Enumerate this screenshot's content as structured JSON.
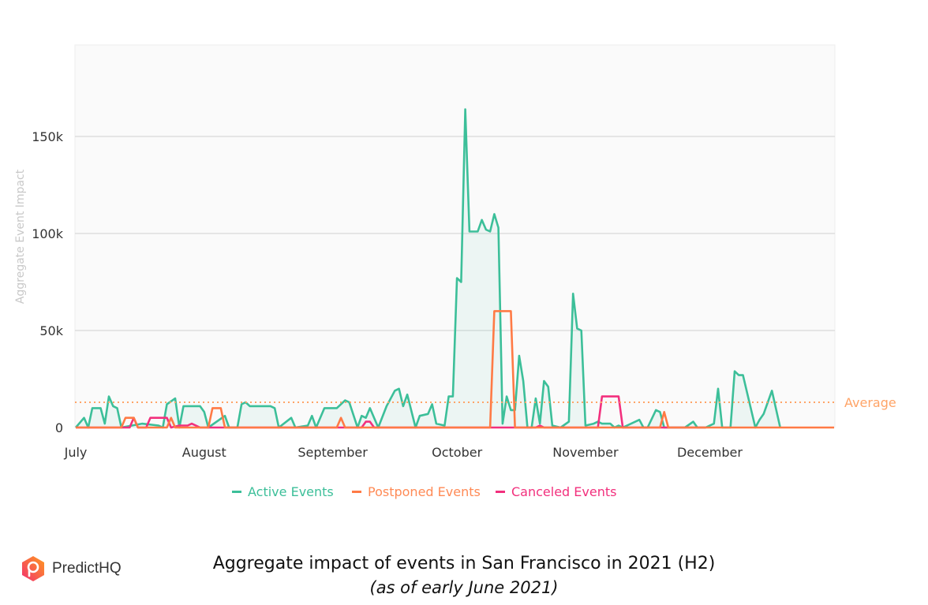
{
  "chart_data": {
    "type": "area",
    "title": "Aggregate impact of events in San Francisco in 2021 (H2)",
    "subtitle": "(as of early June 2021)",
    "ylabel": "Aggregate Event Impact",
    "xlabel": "",
    "xlim": [
      "2021-07-01",
      "2021-12-31"
    ],
    "ylim": [
      0,
      195000
    ],
    "grid": true,
    "legend_placement": "bottom",
    "x_ticks": [
      {
        "date": "2021-07-01",
        "label": "July"
      },
      {
        "date": "2021-08-01",
        "label": "August"
      },
      {
        "date": "2021-09-01",
        "label": "September"
      },
      {
        "date": "2021-10-01",
        "label": "October"
      },
      {
        "date": "2021-11-01",
        "label": "November"
      },
      {
        "date": "2021-12-01",
        "label": "December"
      }
    ],
    "y_ticks": [
      {
        "value": 0,
        "label": "0"
      },
      {
        "value": 50000,
        "label": "50k"
      },
      {
        "value": 100000,
        "label": "100k"
      },
      {
        "value": 150000,
        "label": "150k"
      }
    ],
    "average": {
      "label": "Average",
      "value": 13000,
      "color": "#ffa467"
    },
    "series": [
      {
        "name": "Active Events",
        "color": "#3cbf99",
        "fill": true,
        "points": [
          [
            "2021-07-01",
            0
          ],
          [
            "2021-07-03",
            5000
          ],
          [
            "2021-07-04",
            0
          ],
          [
            "2021-07-05",
            10000
          ],
          [
            "2021-07-07",
            10000
          ],
          [
            "2021-07-08",
            2000
          ],
          [
            "2021-07-09",
            16000
          ],
          [
            "2021-07-10",
            11000
          ],
          [
            "2021-07-11",
            10000
          ],
          [
            "2021-07-12",
            0
          ],
          [
            "2021-07-17",
            2000
          ],
          [
            "2021-07-21",
            1000
          ],
          [
            "2021-07-22",
            0
          ],
          [
            "2021-07-23",
            12000
          ],
          [
            "2021-07-25",
            15000
          ],
          [
            "2021-07-26",
            0
          ],
          [
            "2021-07-27",
            11000
          ],
          [
            "2021-07-29",
            11000
          ],
          [
            "2021-07-31",
            11000
          ],
          [
            "2021-08-01",
            8000
          ],
          [
            "2021-08-02",
            0
          ],
          [
            "2021-08-06",
            6000
          ],
          [
            "2021-08-07",
            0
          ],
          [
            "2021-08-09",
            0
          ],
          [
            "2021-08-10",
            12000
          ],
          [
            "2021-08-11",
            13000
          ],
          [
            "2021-08-12",
            11000
          ],
          [
            "2021-08-17",
            11000
          ],
          [
            "2021-08-18",
            10000
          ],
          [
            "2021-08-19",
            0
          ],
          [
            "2021-08-22",
            5000
          ],
          [
            "2021-08-23",
            0
          ],
          [
            "2021-08-26",
            1000
          ],
          [
            "2021-08-27",
            6000
          ],
          [
            "2021-08-28",
            0
          ],
          [
            "2021-08-30",
            10000
          ],
          [
            "2021-09-02",
            10000
          ],
          [
            "2021-09-04",
            14000
          ],
          [
            "2021-09-05",
            13000
          ],
          [
            "2021-09-07",
            0
          ],
          [
            "2021-09-08",
            6000
          ],
          [
            "2021-09-09",
            5000
          ],
          [
            "2021-09-10",
            10000
          ],
          [
            "2021-09-12",
            0
          ],
          [
            "2021-09-14",
            11000
          ],
          [
            "2021-09-16",
            19000
          ],
          [
            "2021-09-17",
            20000
          ],
          [
            "2021-09-18",
            11000
          ],
          [
            "2021-09-19",
            17000
          ],
          [
            "2021-09-21",
            0
          ],
          [
            "2021-09-22",
            6000
          ],
          [
            "2021-09-24",
            7000
          ],
          [
            "2021-09-25",
            12000
          ],
          [
            "2021-09-26",
            2000
          ],
          [
            "2021-09-28",
            1000
          ],
          [
            "2021-09-29",
            16000
          ],
          [
            "2021-09-30",
            16000
          ],
          [
            "2021-10-01",
            77000
          ],
          [
            "2021-10-02",
            75000
          ],
          [
            "2021-10-03",
            164000
          ],
          [
            "2021-10-04",
            101000
          ],
          [
            "2021-10-06",
            101000
          ],
          [
            "2021-10-07",
            107000
          ],
          [
            "2021-10-08",
            102000
          ],
          [
            "2021-10-09",
            101000
          ],
          [
            "2021-10-10",
            110000
          ],
          [
            "2021-10-11",
            103000
          ],
          [
            "2021-10-12",
            2000
          ],
          [
            "2021-10-13",
            16000
          ],
          [
            "2021-10-14",
            9000
          ],
          [
            "2021-10-15",
            9000
          ],
          [
            "2021-10-16",
            37000
          ],
          [
            "2021-10-17",
            24000
          ],
          [
            "2021-10-18",
            0
          ],
          [
            "2021-10-19",
            0
          ],
          [
            "2021-10-20",
            15000
          ],
          [
            "2021-10-21",
            2000
          ],
          [
            "2021-10-22",
            24000
          ],
          [
            "2021-10-23",
            21000
          ],
          [
            "2021-10-24",
            1000
          ],
          [
            "2021-10-26",
            0
          ],
          [
            "2021-10-28",
            3000
          ],
          [
            "2021-10-29",
            69000
          ],
          [
            "2021-10-30",
            51000
          ],
          [
            "2021-10-31",
            50000
          ],
          [
            "2021-11-01",
            1000
          ],
          [
            "2021-11-03",
            2000
          ],
          [
            "2021-11-04",
            3000
          ],
          [
            "2021-11-05",
            2000
          ],
          [
            "2021-11-07",
            2000
          ],
          [
            "2021-11-08",
            0
          ],
          [
            "2021-11-09",
            1000
          ],
          [
            "2021-11-10",
            0
          ],
          [
            "2021-11-14",
            4000
          ],
          [
            "2021-11-15",
            0
          ],
          [
            "2021-11-16",
            0
          ],
          [
            "2021-11-18",
            9000
          ],
          [
            "2021-11-19",
            8000
          ],
          [
            "2021-11-20",
            0
          ],
          [
            "2021-11-25",
            0
          ],
          [
            "2021-11-27",
            3000
          ],
          [
            "2021-11-28",
            0
          ],
          [
            "2021-11-30",
            0
          ],
          [
            "2021-12-02",
            2000
          ],
          [
            "2021-12-03",
            20000
          ],
          [
            "2021-12-04",
            0
          ],
          [
            "2021-12-06",
            0
          ],
          [
            "2021-12-07",
            29000
          ],
          [
            "2021-12-08",
            27000
          ],
          [
            "2021-12-09",
            27000
          ],
          [
            "2021-12-12",
            0
          ],
          [
            "2021-12-13",
            4000
          ],
          [
            "2021-12-14",
            7000
          ],
          [
            "2021-12-16",
            19000
          ],
          [
            "2021-12-18",
            0
          ]
        ]
      },
      {
        "name": "Canceled Events",
        "color": "#f2307d",
        "fill": false,
        "points": [
          [
            "2021-07-01",
            0
          ],
          [
            "2021-07-14",
            0
          ],
          [
            "2021-07-15",
            5000
          ],
          [
            "2021-07-16",
            0
          ],
          [
            "2021-07-18",
            0
          ],
          [
            "2021-07-19",
            5000
          ],
          [
            "2021-07-23",
            5000
          ],
          [
            "2021-07-24",
            0
          ],
          [
            "2021-07-26",
            1000
          ],
          [
            "2021-07-28",
            1000
          ],
          [
            "2021-07-29",
            2000
          ],
          [
            "2021-07-31",
            0
          ],
          [
            "2021-09-08",
            0
          ],
          [
            "2021-09-09",
            3000
          ],
          [
            "2021-09-10",
            3000
          ],
          [
            "2021-09-11",
            0
          ],
          [
            "2021-10-20",
            0
          ],
          [
            "2021-10-21",
            1000
          ],
          [
            "2021-10-22",
            0
          ],
          [
            "2021-11-04",
            0
          ],
          [
            "2021-11-05",
            16000
          ],
          [
            "2021-11-09",
            16000
          ],
          [
            "2021-11-10",
            0
          ],
          [
            "2021-11-30",
            0
          ]
        ]
      },
      {
        "name": "Postponed Events",
        "color": "#ff7a45",
        "fill": false,
        "points": [
          [
            "2021-07-01",
            0
          ],
          [
            "2021-07-12",
            0
          ],
          [
            "2021-07-13",
            5000
          ],
          [
            "2021-07-15",
            5000
          ],
          [
            "2021-07-16",
            0
          ],
          [
            "2021-07-23",
            0
          ],
          [
            "2021-07-24",
            5000
          ],
          [
            "2021-07-25",
            0
          ],
          [
            "2021-08-02",
            0
          ],
          [
            "2021-08-03",
            10000
          ],
          [
            "2021-08-05",
            10000
          ],
          [
            "2021-08-06",
            0
          ],
          [
            "2021-09-02",
            0
          ],
          [
            "2021-09-03",
            5000
          ],
          [
            "2021-09-04",
            0
          ],
          [
            "2021-10-09",
            0
          ],
          [
            "2021-10-10",
            60000
          ],
          [
            "2021-10-14",
            60000
          ],
          [
            "2021-10-15",
            0
          ],
          [
            "2021-11-19",
            0
          ],
          [
            "2021-11-20",
            8000
          ],
          [
            "2021-11-21",
            0
          ],
          [
            "2021-12-31",
            0
          ]
        ]
      }
    ],
    "legend": [
      {
        "label": "Active Events",
        "color": "#3cbf99"
      },
      {
        "label": "Postponed Events",
        "color": "#ff7a45"
      },
      {
        "label": "Canceled Events",
        "color": "#f2307d"
      }
    ]
  },
  "branding": {
    "logo_text": "PredictHQ",
    "logo_icon": "location-pin-hexagon-icon"
  }
}
